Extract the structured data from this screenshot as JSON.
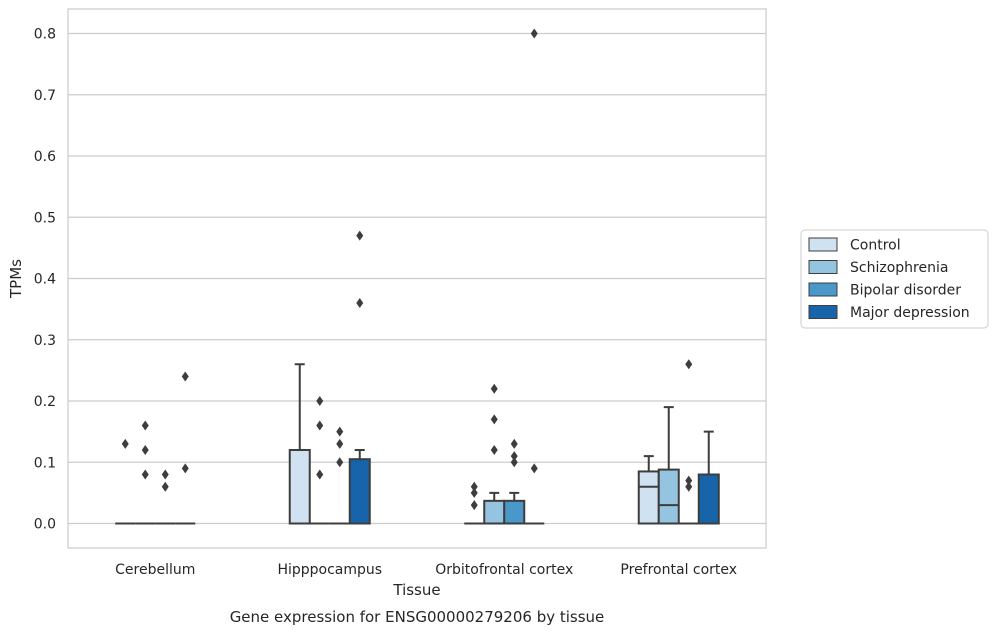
{
  "chart_data": {
    "type": "box",
    "title": "Gene expression for ENSG00000279206 by tissue",
    "xlabel": "Tissue",
    "ylabel": "TPMs",
    "ylim": [
      -0.04,
      0.84
    ],
    "yticks": [
      "0.0",
      "0.1",
      "0.2",
      "0.3",
      "0.4",
      "0.5",
      "0.6",
      "0.7",
      "0.8"
    ],
    "grid": true,
    "legend_position": "right",
    "categories": [
      "Cerebellum",
      "Hipppocampus",
      "Orbitofrontal cortex",
      "Prefrontal cortex"
    ],
    "series": [
      {
        "name": "Control",
        "color": "#d0e1f2",
        "boxes": [
          {
            "q1": 0,
            "median": 0,
            "q3": 0,
            "whislo": 0,
            "whishi": 0,
            "fliers": [
              0.13
            ]
          },
          {
            "q1": 0,
            "median": 0,
            "q3": 0.12,
            "whislo": 0,
            "whishi": 0.26,
            "fliers": []
          },
          {
            "q1": 0,
            "median": 0,
            "q3": 0,
            "whislo": 0,
            "whishi": 0,
            "fliers": [
              0.06,
              0.05,
              0.03
            ]
          },
          {
            "q1": 0,
            "median": 0.06,
            "q3": 0.085,
            "whislo": 0,
            "whishi": 0.11,
            "fliers": []
          }
        ]
      },
      {
        "name": "Schizophrenia",
        "color": "#94c4df",
        "boxes": [
          {
            "q1": 0,
            "median": 0,
            "q3": 0,
            "whislo": 0,
            "whishi": 0,
            "fliers": [
              0.16,
              0.12,
              0.08
            ]
          },
          {
            "q1": 0,
            "median": 0,
            "q3": 0,
            "whislo": 0,
            "whishi": 0,
            "fliers": [
              0.2,
              0.16,
              0.08
            ]
          },
          {
            "q1": 0,
            "median": 0,
            "q3": 0.037,
            "whislo": 0,
            "whishi": 0.05,
            "fliers": [
              0.22,
              0.17,
              0.12
            ]
          },
          {
            "q1": 0,
            "median": 0.03,
            "q3": 0.088,
            "whislo": 0,
            "whishi": 0.19,
            "fliers": []
          }
        ]
      },
      {
        "name": "Bipolar disorder",
        "color": "#4a98c9",
        "boxes": [
          {
            "q1": 0,
            "median": 0,
            "q3": 0,
            "whislo": 0,
            "whishi": 0,
            "fliers": [
              0.08,
              0.06
            ]
          },
          {
            "q1": 0,
            "median": 0,
            "q3": 0,
            "whislo": 0,
            "whishi": 0,
            "fliers": [
              0.15,
              0.13,
              0.1
            ]
          },
          {
            "q1": 0,
            "median": 0,
            "q3": 0.037,
            "whislo": 0,
            "whishi": 0.05,
            "fliers": [
              0.13,
              0.11,
              0.1
            ]
          },
          {
            "q1": 0,
            "median": 0,
            "q3": 0,
            "whislo": 0,
            "whishi": 0,
            "fliers": [
              0.26,
              0.07,
              0.06
            ]
          }
        ]
      },
      {
        "name": "Major depression",
        "color": "#1764ab",
        "boxes": [
          {
            "q1": 0,
            "median": 0,
            "q3": 0,
            "whislo": 0,
            "whishi": 0,
            "fliers": [
              0.24,
              0.09
            ]
          },
          {
            "q1": 0,
            "median": 0,
            "q3": 0.105,
            "whislo": 0,
            "whishi": 0.12,
            "fliers": [
              0.47,
              0.36
            ]
          },
          {
            "q1": 0,
            "median": 0,
            "q3": 0,
            "whislo": 0,
            "whishi": 0,
            "fliers": [
              0.8,
              0.09
            ]
          },
          {
            "q1": 0,
            "median": 0,
            "q3": 0.08,
            "whislo": 0,
            "whishi": 0.15,
            "fliers": []
          }
        ]
      }
    ]
  }
}
